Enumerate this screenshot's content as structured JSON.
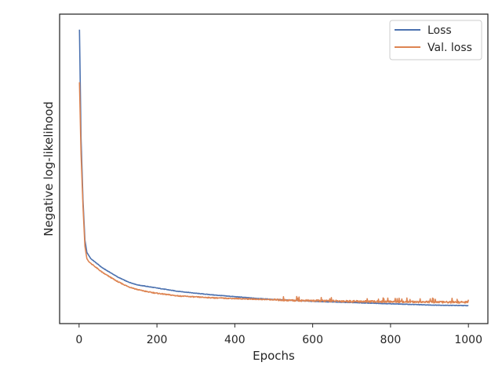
{
  "chart_data": {
    "type": "line",
    "title": "",
    "xlabel": "Epochs",
    "ylabel": "Negative log-likelihood",
    "xlim": [
      -50,
      1050
    ],
    "ylim": [
      0,
      1
    ],
    "y_tick_labels_shown": false,
    "x_ticks": [
      0,
      200,
      400,
      600,
      800,
      1000
    ],
    "x_tick_labels": [
      "0",
      "200",
      "400",
      "600",
      "800",
      "1000"
    ],
    "grid": false,
    "legend_position": "top-right",
    "series": [
      {
        "name": "Loss",
        "color": "#4c72b0",
        "x": [
          1,
          5,
          10,
          15,
          20,
          25,
          30,
          40,
          50,
          60,
          80,
          100,
          125,
          150,
          175,
          200,
          250,
          300,
          350,
          400,
          450,
          500,
          550,
          600,
          650,
          700,
          750,
          800,
          850,
          900,
          950,
          1000
        ],
        "y": [
          0.95,
          0.6,
          0.4,
          0.27,
          0.23,
          0.22,
          0.21,
          0.2,
          0.19,
          0.18,
          0.165,
          0.15,
          0.135,
          0.125,
          0.12,
          0.115,
          0.105,
          0.098,
          0.092,
          0.087,
          0.082,
          0.078,
          0.075,
          0.072,
          0.07,
          0.068,
          0.066,
          0.064,
          0.062,
          0.06,
          0.059,
          0.058
        ]
      },
      {
        "name": "Val. loss",
        "color": "#dd8452",
        "x": [
          1,
          5,
          10,
          15,
          20,
          25,
          30,
          40,
          50,
          60,
          80,
          100,
          125,
          150,
          175,
          200,
          250,
          300,
          350,
          400,
          450,
          500,
          550,
          600,
          650,
          700,
          750,
          800,
          850,
          900,
          950,
          1000
        ],
        "y": [
          0.78,
          0.55,
          0.38,
          0.25,
          0.21,
          0.2,
          0.195,
          0.185,
          0.175,
          0.165,
          0.15,
          0.135,
          0.12,
          0.11,
          0.103,
          0.098,
          0.09,
          0.086,
          0.083,
          0.081,
          0.079,
          0.077,
          0.075,
          0.074,
          0.073,
          0.072,
          0.071,
          0.071,
          0.07,
          0.07,
          0.069,
          0.069
        ]
      }
    ]
  }
}
